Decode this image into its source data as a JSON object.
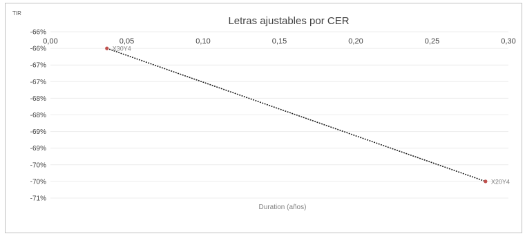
{
  "chart_data": {
    "type": "scatter",
    "title": "Letras ajustables por CER",
    "ylabel": "TIR",
    "xlabel": "Duration (años)",
    "x_axis_position": "top",
    "x_ticks": [
      "0,00",
      "0,05",
      "0,10",
      "0,15",
      "0,20",
      "0,25",
      "0,30"
    ],
    "xlim": [
      0,
      0.3
    ],
    "y_ticks": [
      "-66%",
      "-66%",
      "-67%",
      "-67%",
      "-68%",
      "-68%",
      "-69%",
      "-69%",
      "-70%",
      "-70%",
      "-71%"
    ],
    "ylim": [
      -71,
      -66
    ],
    "grid": true,
    "trendline": {
      "style": "dotted",
      "color": "#1f1f1f"
    },
    "series": [
      {
        "color": "#c0504d",
        "points": [
          {
            "label": "X30Y4",
            "x": 0.037,
            "y": -66.5
          },
          {
            "label": "X20Y4",
            "x": 0.285,
            "y": -70.5
          }
        ]
      }
    ]
  }
}
